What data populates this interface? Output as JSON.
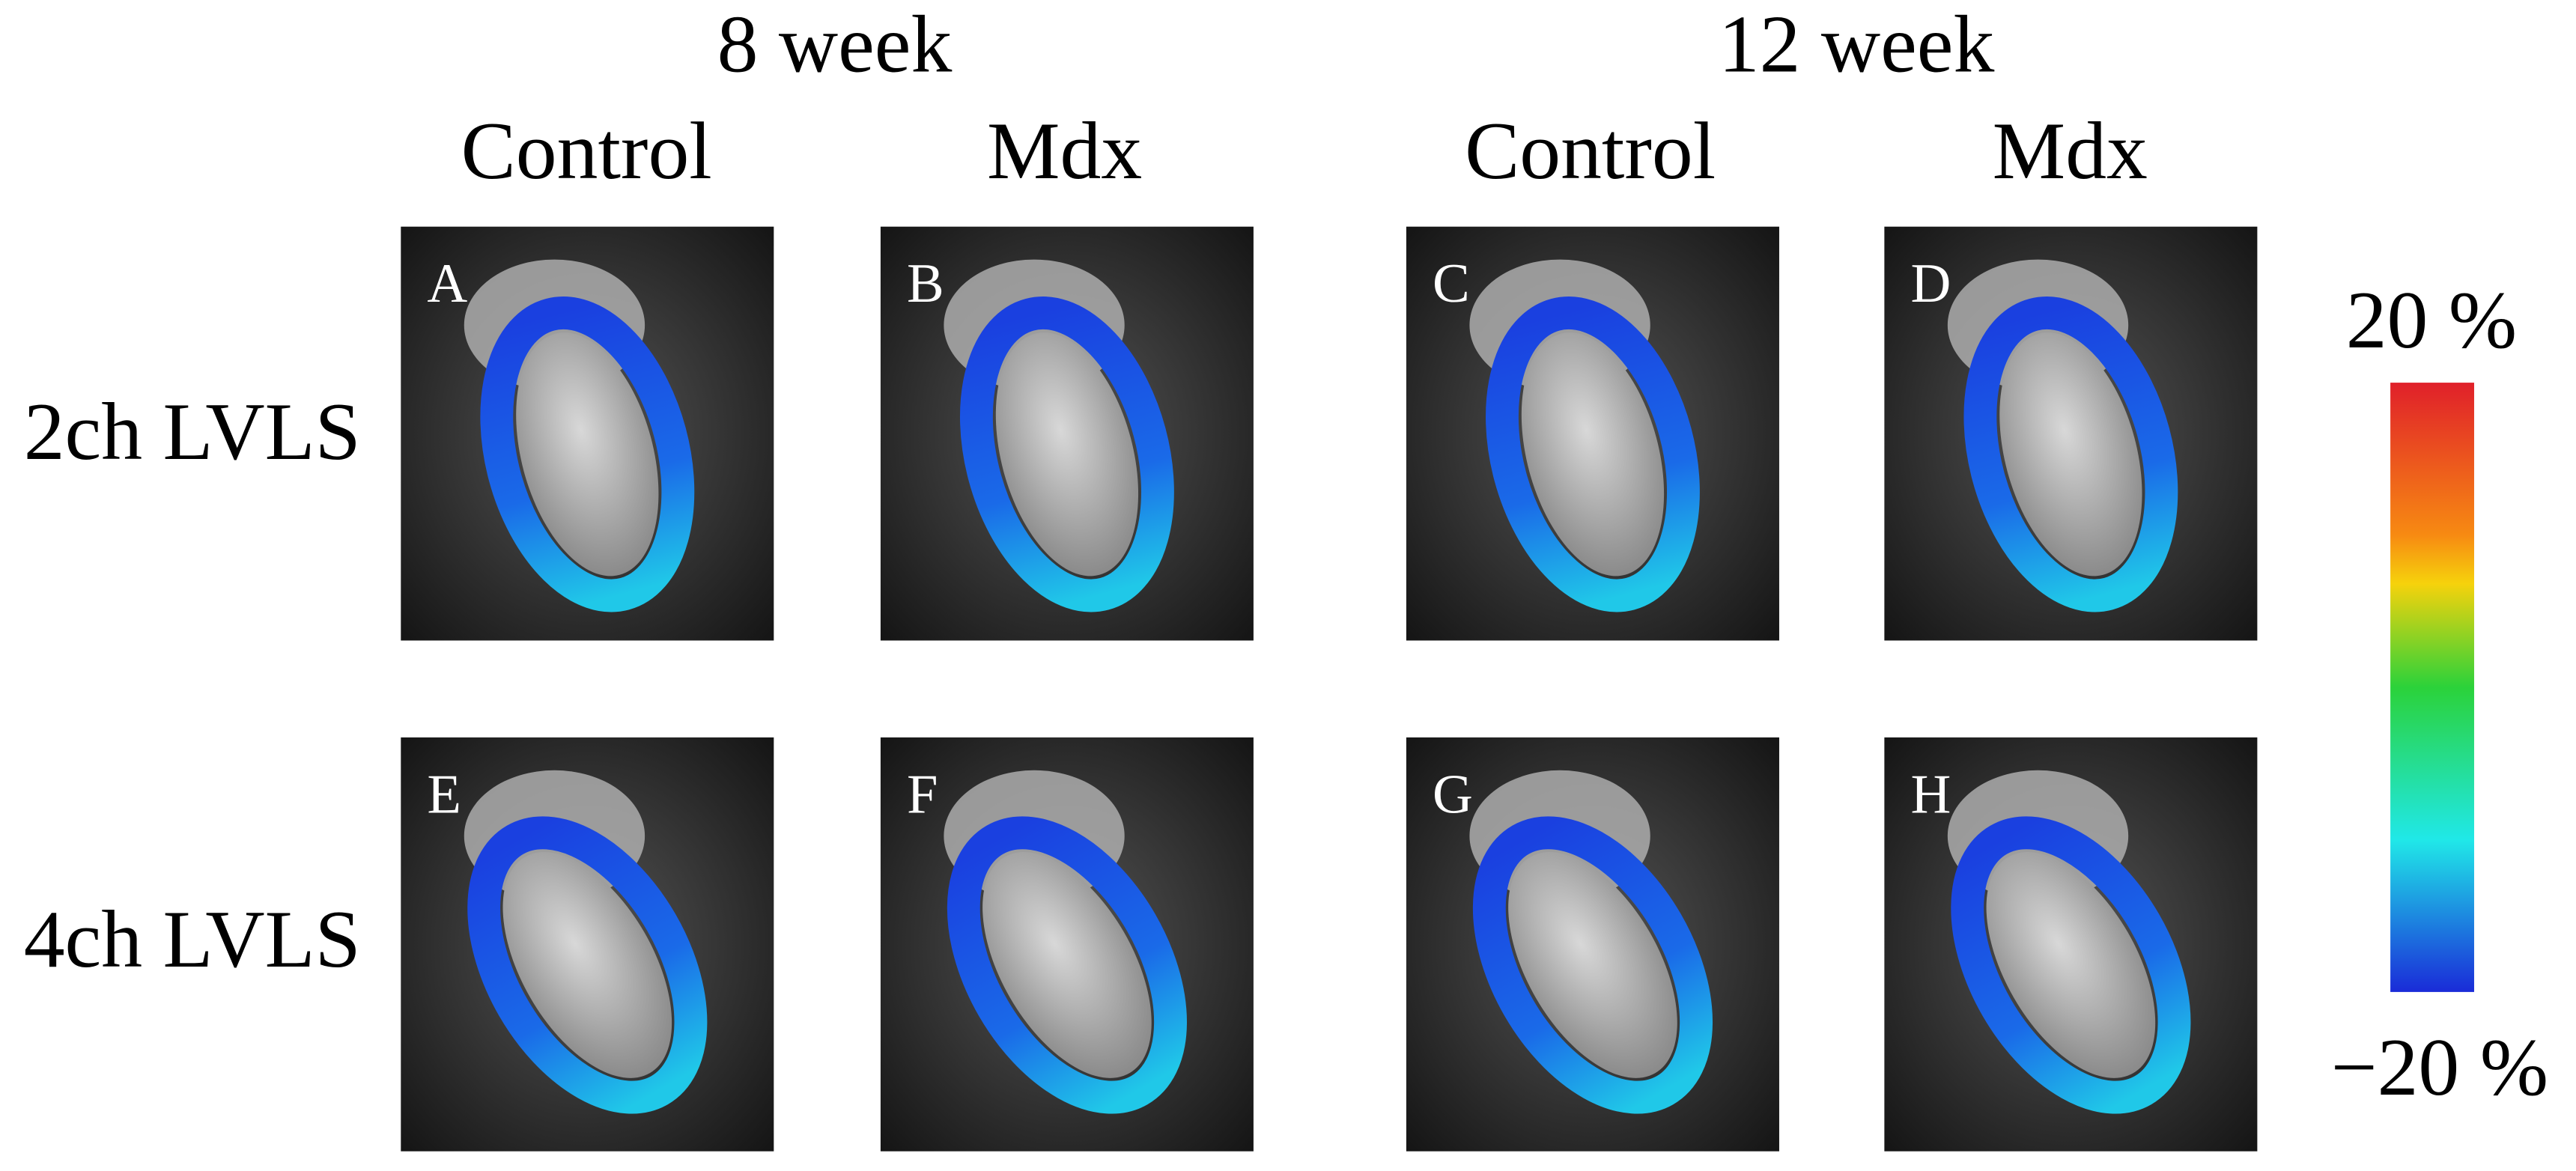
{
  "column_groups": [
    "8 week",
    "12 week"
  ],
  "columns": [
    "Control",
    "Mdx",
    "Control",
    "Mdx"
  ],
  "rows": [
    "2ch LVLS",
    "4ch LVLS"
  ],
  "panels": [
    "A",
    "B",
    "C",
    "D",
    "E",
    "F",
    "G",
    "H"
  ],
  "colorbar": {
    "max_label": "20 %",
    "min_label": "−20 %"
  }
}
